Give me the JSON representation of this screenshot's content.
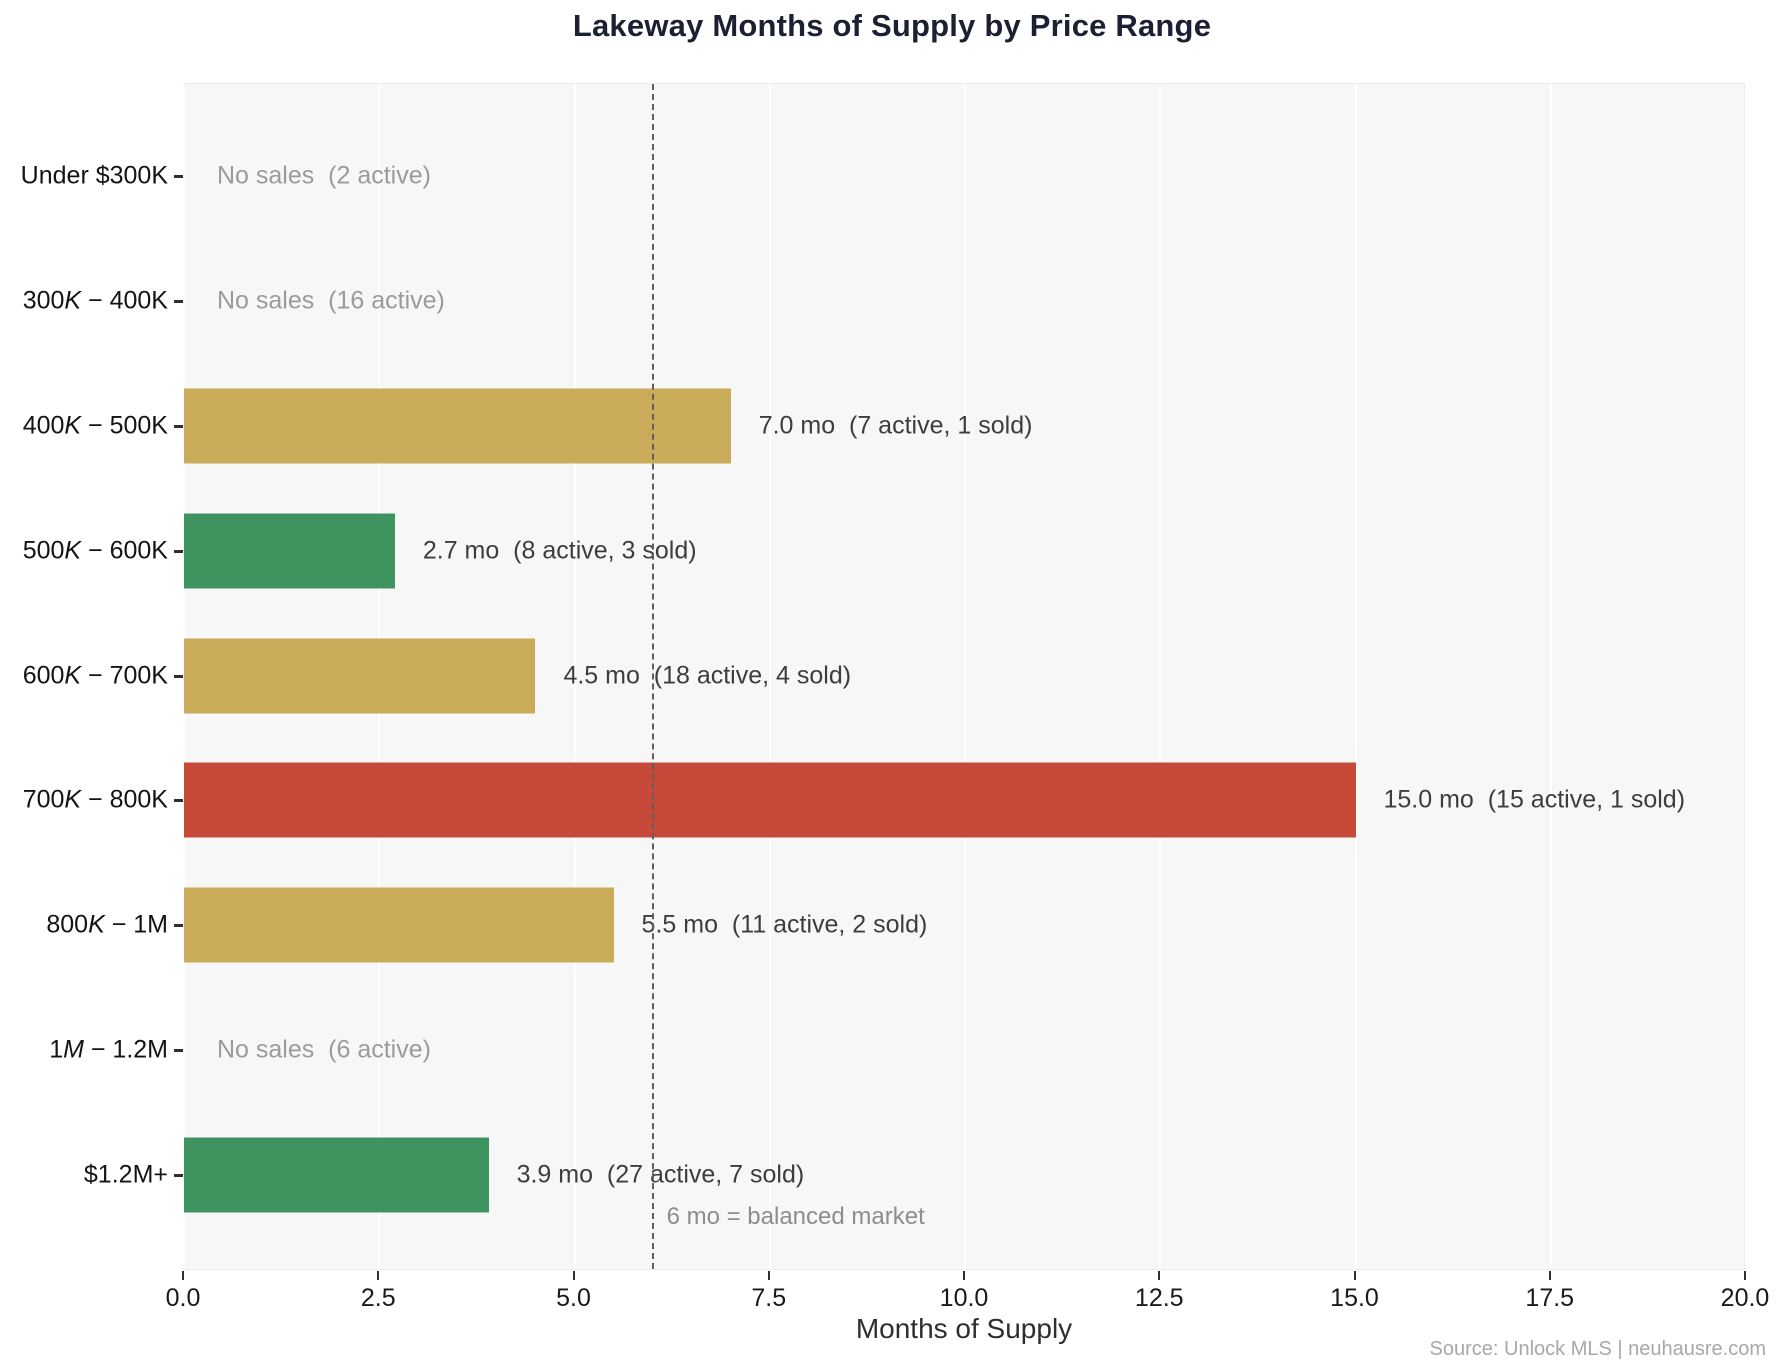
{
  "title": "Lakeway Months of Supply by Price Range",
  "x_axis": {
    "label": "Months of Supply",
    "min": 0,
    "max": 20,
    "tick_values": [
      0,
      2.5,
      5,
      7.5,
      10,
      12.5,
      15,
      17.5,
      20
    ],
    "tick_labels": [
      "0.0",
      "2.5",
      "5.0",
      "7.5",
      "10.0",
      "12.5",
      "15.0",
      "17.5",
      "20.0"
    ]
  },
  "reference_line": {
    "value": 6,
    "label": "6 mo = balanced market"
  },
  "source": "Source: Unlock MLS | neuhausre.com",
  "colors": {
    "gold": "#c6a54c",
    "green": "#2f8c52",
    "red": "#c23b2b",
    "panel_bg": "#f7f7f8",
    "annotation_text": "#3d3d3d",
    "no_sales_text": "#9b9b9b",
    "title_text": "#1c2033"
  },
  "chart_data": {
    "type": "bar",
    "orientation": "horizontal",
    "title": "Lakeway Months of Supply by Price Range",
    "xlabel": "Months of Supply",
    "xlim": [
      0,
      20
    ],
    "xticks": [
      0,
      2.5,
      5,
      7.5,
      10,
      12.5,
      15,
      17.5,
      20
    ],
    "grid": true,
    "reference_line": {
      "x": 6,
      "label": "6 mo = balanced market"
    },
    "categories": [
      "Under $300K",
      "$300K−$400K",
      "$400K−$500K",
      "$500K−$600K",
      "$600K−$700K",
      "$700K−$800K",
      "$800K−$1M",
      "$1M−$1.2M",
      "$1.2M+"
    ],
    "values": [
      null,
      null,
      7.0,
      2.7,
      4.5,
      15.0,
      5.5,
      null,
      3.9
    ],
    "active_listings": [
      2,
      16,
      7,
      8,
      18,
      15,
      11,
      6,
      27
    ],
    "sold": [
      0,
      0,
      1,
      3,
      4,
      1,
      2,
      0,
      7
    ],
    "bar_color_names": [
      null,
      null,
      "gold",
      "green",
      "gold",
      "red",
      "gold",
      null,
      "green"
    ]
  },
  "rows": [
    {
      "label_pre": "Under $300K",
      "label_it": "",
      "label_post": "",
      "value_months": null,
      "color": null,
      "annotation": "No sales  (2 active)"
    },
    {
      "label_pre": "300",
      "label_it": "K",
      "label_post": " − 400K",
      "value_months": null,
      "color": null,
      "annotation": "No sales  (16 active)"
    },
    {
      "label_pre": "400",
      "label_it": "K",
      "label_post": " − 500K",
      "value_months": 7.0,
      "color": "gold",
      "annotation": "7.0 mo  (7 active, 1 sold)"
    },
    {
      "label_pre": "500",
      "label_it": "K",
      "label_post": " − 600K",
      "value_months": 2.7,
      "color": "green",
      "annotation": "2.7 mo  (8 active, 3 sold)"
    },
    {
      "label_pre": "600",
      "label_it": "K",
      "label_post": " − 700K",
      "value_months": 4.5,
      "color": "gold",
      "annotation": "4.5 mo  (18 active, 4 sold)"
    },
    {
      "label_pre": "700",
      "label_it": "K",
      "label_post": " − 800K",
      "value_months": 15.0,
      "color": "red",
      "annotation": "15.0 mo  (15 active, 1 sold)"
    },
    {
      "label_pre": "800",
      "label_it": "K",
      "label_post": " − 1M",
      "value_months": 5.5,
      "color": "gold",
      "annotation": "5.5 mo  (11 active, 2 sold)"
    },
    {
      "label_pre": "1",
      "label_it": "M",
      "label_post": " − 1.2M",
      "value_months": null,
      "color": null,
      "annotation": "No sales  (6 active)"
    },
    {
      "label_pre": "$1.2M+",
      "label_it": "",
      "label_post": "",
      "value_months": 3.9,
      "color": "green",
      "annotation": "3.9 mo  (27 active, 7 sold)"
    }
  ]
}
